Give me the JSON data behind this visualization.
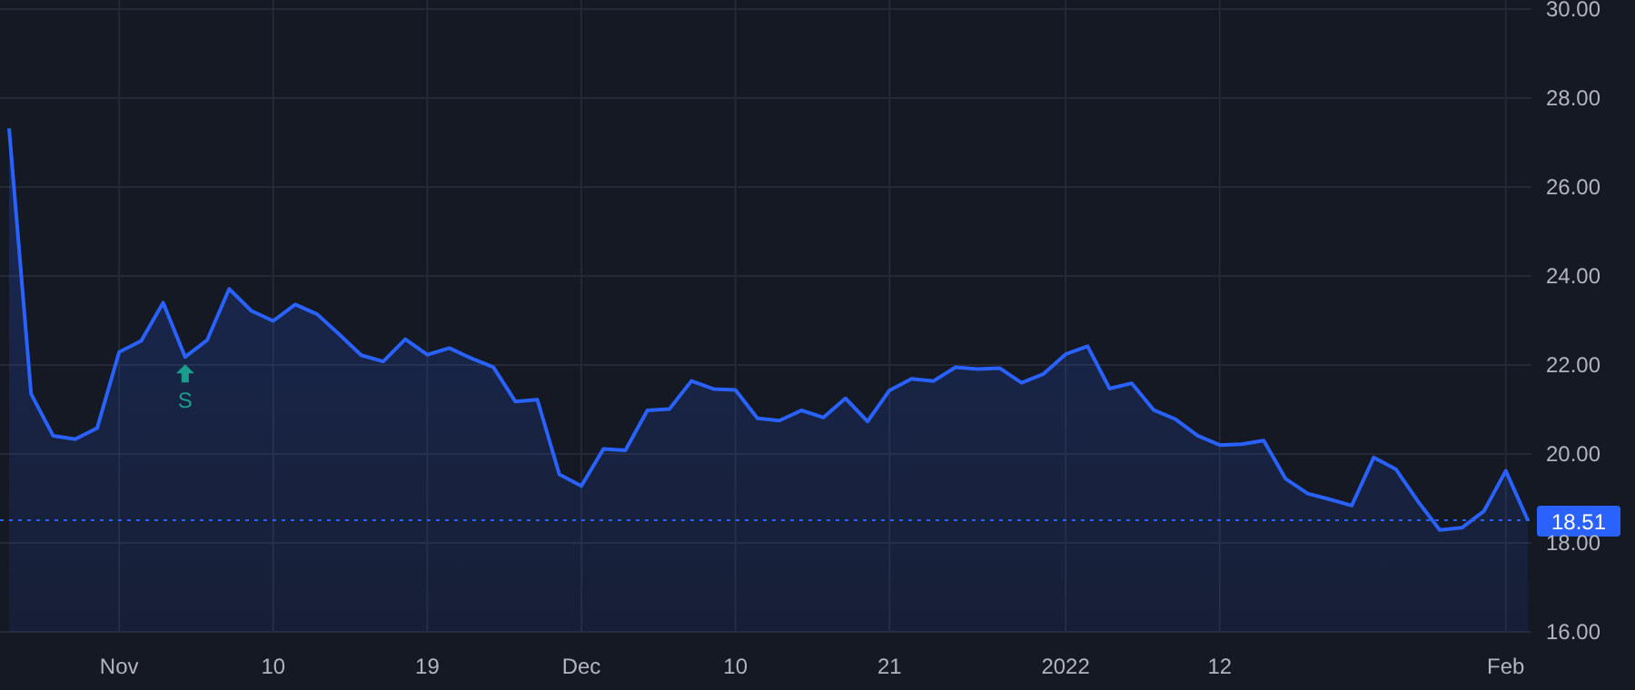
{
  "chart_data": {
    "type": "area",
    "categories": [
      null,
      null,
      null,
      null,
      null,
      "Nov",
      null,
      null,
      null,
      null,
      null,
      null,
      "10",
      null,
      null,
      null,
      null,
      null,
      null,
      "19",
      null,
      null,
      null,
      null,
      null,
      null,
      "Dec",
      null,
      null,
      null,
      null,
      null,
      null,
      "10",
      null,
      null,
      null,
      null,
      null,
      null,
      "21",
      null,
      null,
      null,
      null,
      null,
      null,
      null,
      "2022",
      null,
      null,
      null,
      null,
      null,
      null,
      "12",
      null,
      null,
      null,
      null,
      null,
      null,
      null,
      null,
      null,
      null,
      null,
      null,
      "Feb",
      null
    ],
    "series": [
      {
        "color": "#2962ff",
        "values": [
          27.32,
          21.35,
          20.41,
          20.33,
          20.58,
          22.29,
          22.54,
          23.4,
          22.18,
          22.56,
          23.71,
          23.22,
          22.99,
          23.36,
          23.14,
          22.69,
          22.22,
          22.08,
          22.58,
          22.23,
          22.38,
          22.15,
          21.95,
          21.18,
          21.22,
          19.54,
          19.28,
          20.11,
          20.08,
          20.98,
          21.01,
          21.64,
          21.46,
          21.44,
          20.8,
          20.75,
          20.98,
          20.82,
          21.25,
          20.73,
          21.43,
          21.69,
          21.64,
          21.95,
          21.91,
          21.93,
          21.6,
          21.8,
          22.24,
          22.42,
          21.47,
          21.59,
          20.99,
          20.78,
          20.41,
          20.2,
          20.22,
          20.3,
          19.44,
          19.11,
          18.98,
          18.84,
          19.92,
          19.66,
          18.94,
          18.29,
          18.34,
          18.71,
          19.62,
          18.51
        ]
      }
    ],
    "ylim": [
      16,
      30
    ],
    "yticks": [
      {
        "value": 16,
        "label": "16.00"
      },
      {
        "value": 18,
        "label": "18.00"
      },
      {
        "value": 20,
        "label": "20.00"
      },
      {
        "value": 22,
        "label": "22.00"
      },
      {
        "value": 24,
        "label": "24.00"
      },
      {
        "value": 26,
        "label": "26.00"
      },
      {
        "value": 28,
        "label": "28.00"
      },
      {
        "value": 30,
        "label": "30.00"
      }
    ],
    "grid": true,
    "line_style": "solid",
    "marker": "none",
    "ref_lines": [
      {
        "axis": "y",
        "value": 18.51,
        "label": "18.51",
        "color": "#2962ff",
        "line_style": "dotted"
      }
    ],
    "annotations": [
      {
        "text": "S",
        "y": 22.18
      }
    ]
  }
}
